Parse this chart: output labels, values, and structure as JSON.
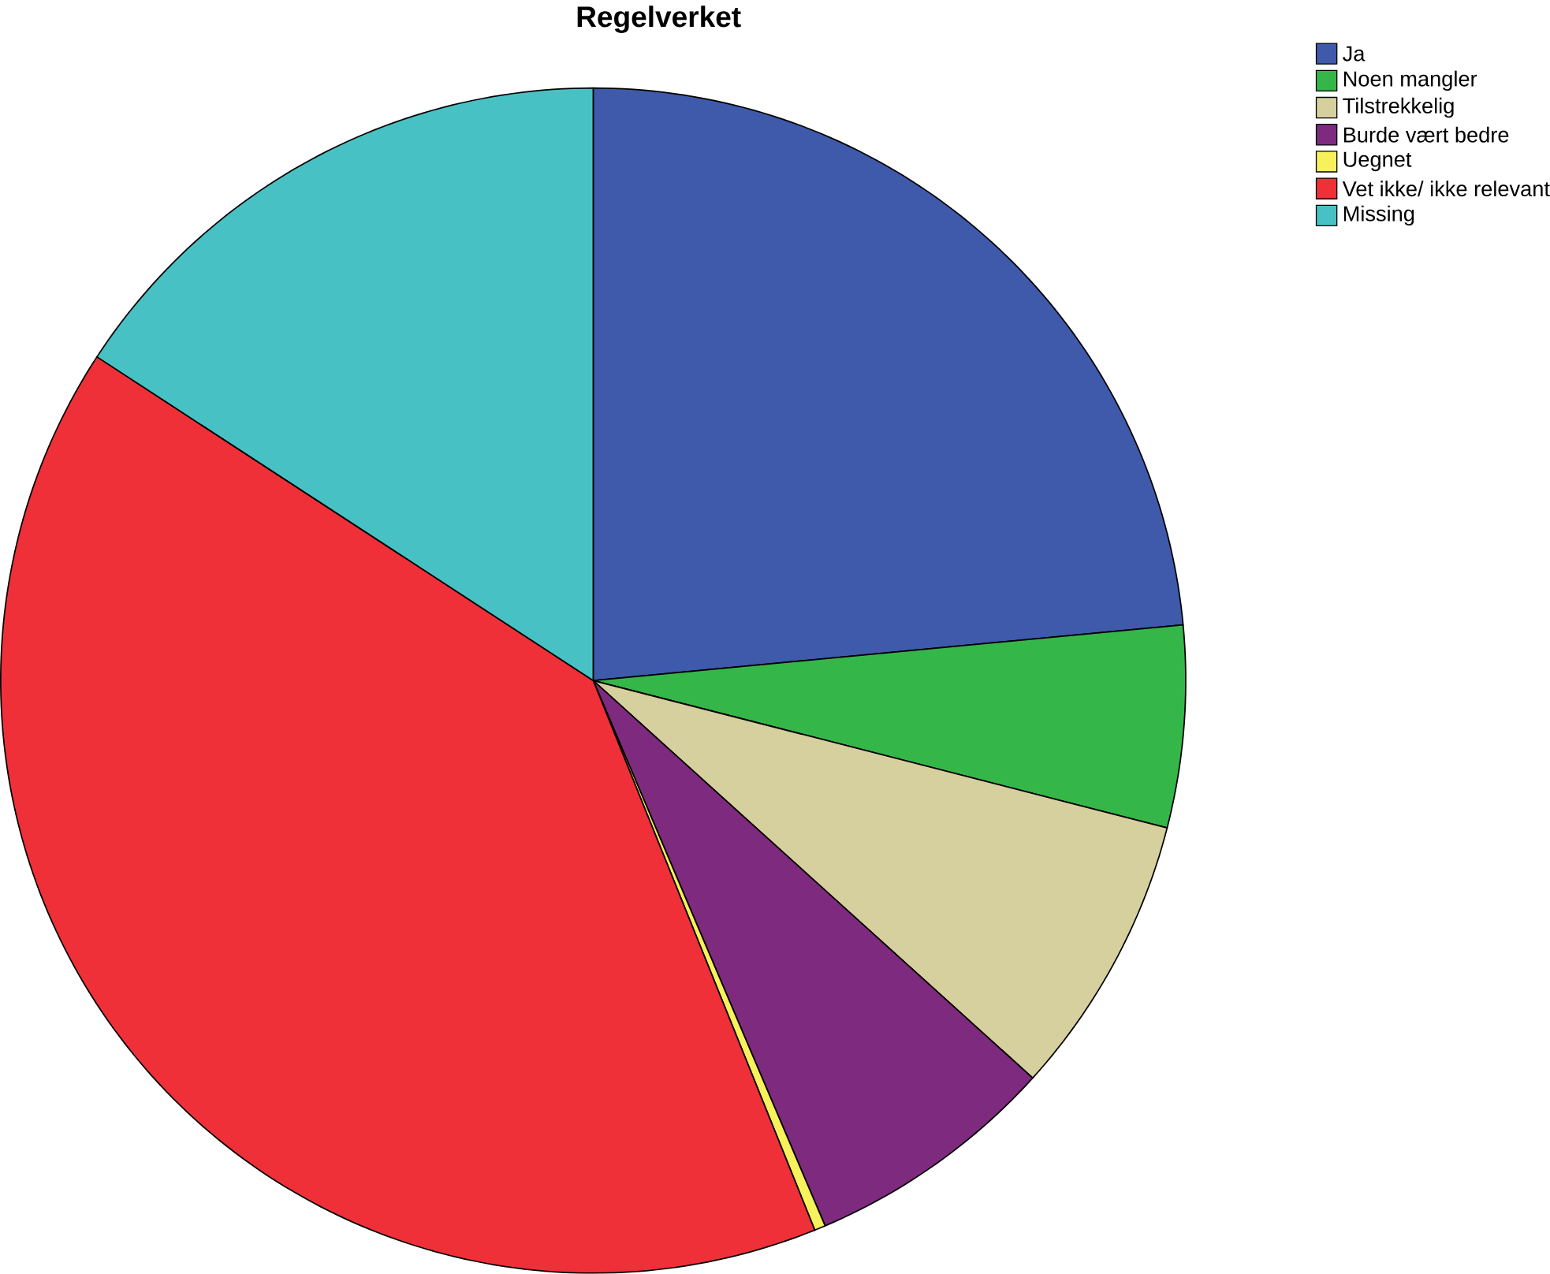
{
  "chart_data": {
    "type": "pie",
    "title": "Regelverket",
    "legend": "top right",
    "categories": [
      "Ja",
      "Noen mangler",
      "Tilstrekkelig",
      "Burde vært bedre",
      "Uegnet",
      "Vet ikke/ ikke relevant",
      "Missing"
    ],
    "values": [
      23.5,
      5.5,
      7.7,
      6.9,
      0.3,
      40.3,
      15.8
    ],
    "colors": [
      "#3f59ab",
      "#35b649",
      "#d6cf9e",
      "#7e2a7e",
      "#f7f15c",
      "#ef3039",
      "#48c1c4"
    ]
  }
}
